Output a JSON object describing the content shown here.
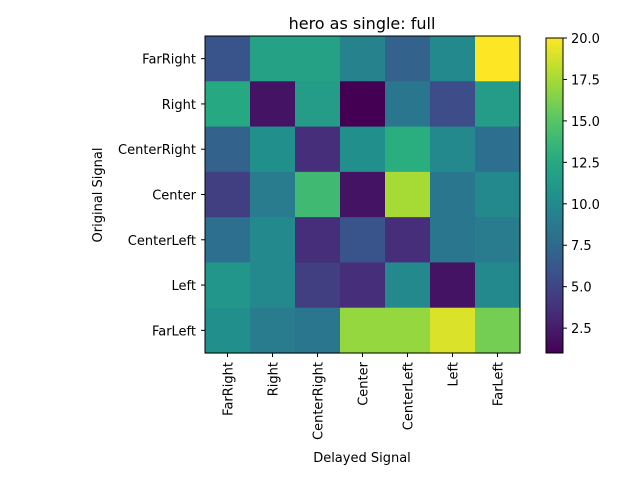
{
  "chart_data": {
    "type": "heatmap",
    "title": "hero as single: full",
    "xlabel": "Delayed Signal",
    "ylabel": "Original Signal",
    "x_categories": [
      "FarRight",
      "Right",
      "CenterRight",
      "Center",
      "CenterLeft",
      "Left",
      "FarLeft"
    ],
    "y_categories": [
      "FarRight",
      "Right",
      "CenterRight",
      "Center",
      "CenterLeft",
      "Left",
      "FarLeft"
    ],
    "values": [
      [
        6,
        12,
        12,
        9.5,
        7,
        10,
        20
      ],
      [
        12.5,
        2,
        11.5,
        1,
        8.5,
        5.5,
        11.5
      ],
      [
        7,
        10.5,
        3.5,
        10.5,
        13,
        10,
        8
      ],
      [
        4.5,
        9,
        14,
        2,
        17.5,
        8.5,
        10
      ],
      [
        8,
        10,
        3.5,
        6,
        3.5,
        8.5,
        9
      ],
      [
        11,
        10,
        4.5,
        3.5,
        10,
        2,
        10
      ],
      [
        10.5,
        9,
        8.5,
        17,
        17,
        19,
        16
      ]
    ],
    "colorbar": {
      "min": 1,
      "max": 20,
      "ticks": [
        "2.5",
        "5.0",
        "7.5",
        "10.0",
        "12.5",
        "15.0",
        "17.5",
        "20.0"
      ],
      "colormap": "viridis"
    }
  }
}
